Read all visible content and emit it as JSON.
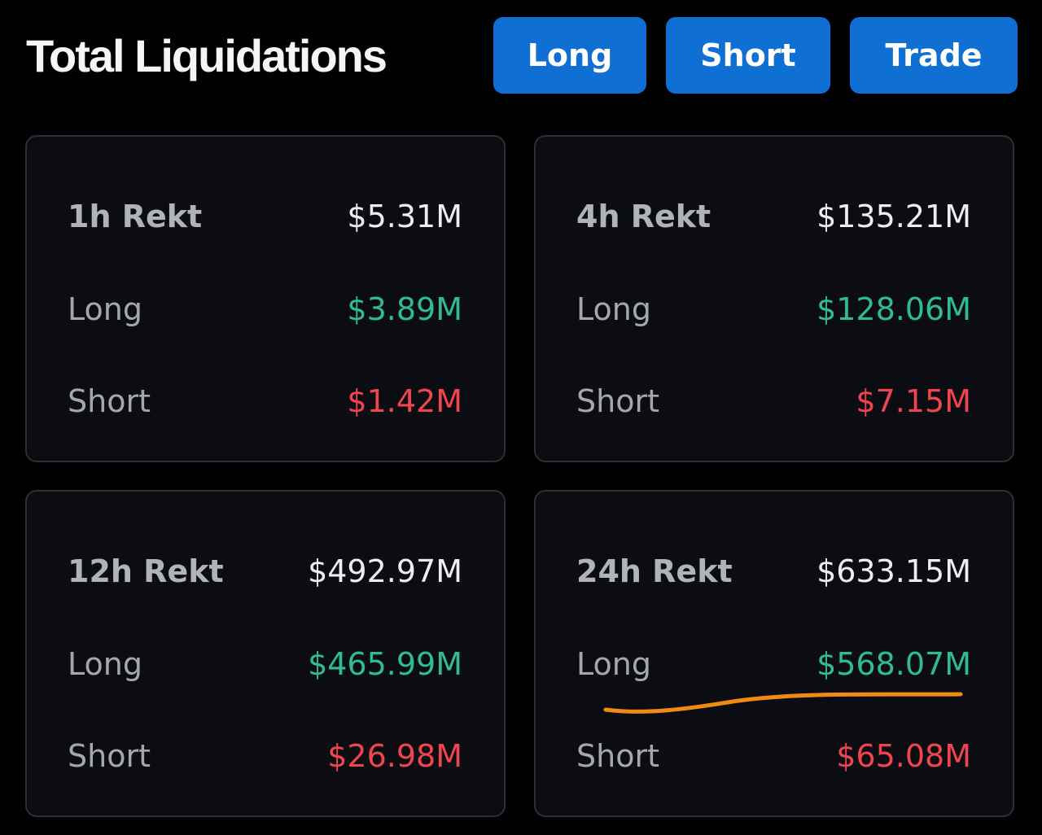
{
  "header": {
    "title": "Total Liquidations",
    "buttons": {
      "long": "Long",
      "short": "Short",
      "trade": "Trade"
    }
  },
  "cards": {
    "1h": {
      "rekt_label": "1h Rekt",
      "rekt_value": "$5.31M",
      "long_label": "Long",
      "long_value": "$3.89M",
      "short_label": "Short",
      "short_value": "$1.42M"
    },
    "4h": {
      "rekt_label": "4h Rekt",
      "rekt_value": "$135.21M",
      "long_label": "Long",
      "long_value": "$128.06M",
      "short_label": "Short",
      "short_value": "$7.15M"
    },
    "12h": {
      "rekt_label": "12h Rekt",
      "rekt_value": "$492.97M",
      "long_label": "Long",
      "long_value": "$465.99M",
      "short_label": "Short",
      "short_value": "$26.98M"
    },
    "24h": {
      "rekt_label": "24h Rekt",
      "rekt_value": "$633.15M",
      "long_label": "Long",
      "long_value": "$568.07M",
      "short_label": "Short",
      "short_value": "$65.08M"
    }
  },
  "colors": {
    "background": "#010102",
    "card_background": "#0c0d12",
    "button_accent": "#0f6fd3",
    "long": "#2fbd8e",
    "short": "#f0454f",
    "annotation": "#f18a12"
  }
}
